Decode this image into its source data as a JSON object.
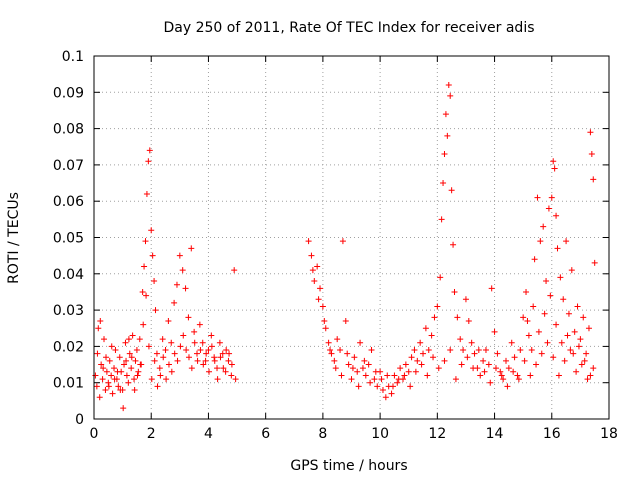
{
  "chart_data": {
    "type": "scatter",
    "title": "Day 250 of 2011, Rate Of TEC Index for receiver adis",
    "xlabel": "GPS time / hours",
    "ylabel": "ROTI / TECUs",
    "xlim": [
      0,
      18
    ],
    "ylim": [
      0,
      0.1
    ],
    "x_ticks": [
      "0",
      "2",
      "4",
      "6",
      "8",
      "10",
      "12",
      "14",
      "16",
      "18"
    ],
    "y_ticks": [
      "0",
      "0.01",
      "0.02",
      "0.03",
      "0.04",
      "0.05",
      "0.06",
      "0.07",
      "0.08",
      "0.09",
      "0.1"
    ],
    "grid": true,
    "marker": "+",
    "color": "#ff0000",
    "series": [
      {
        "points": [
          [
            0.05,
            0.012
          ],
          [
            0.1,
            0.009
          ],
          [
            0.15,
            0.025
          ],
          [
            0.2,
            0.006
          ],
          [
            0.25,
            0.015
          ],
          [
            0.3,
            0.011
          ],
          [
            0.35,
            0.022
          ],
          [
            0.4,
            0.008
          ],
          [
            0.45,
            0.013
          ],
          [
            0.5,
            0.01
          ],
          [
            0.55,
            0.016
          ],
          [
            0.6,
            0.012
          ],
          [
            0.65,
            0.007
          ],
          [
            0.7,
            0.014
          ],
          [
            0.75,
            0.019
          ],
          [
            0.8,
            0.011
          ],
          [
            0.85,
            0.009
          ],
          [
            0.9,
            0.017
          ],
          [
            0.95,
            0.013
          ],
          [
            1.0,
            0.008
          ],
          [
            1.05,
            0.015
          ],
          [
            1.1,
            0.021
          ],
          [
            1.15,
            0.012
          ],
          [
            1.2,
            0.01
          ],
          [
            1.25,
            0.018
          ],
          [
            1.3,
            0.014
          ],
          [
            1.35,
            0.023
          ],
          [
            1.4,
            0.011
          ],
          [
            1.45,
            0.016
          ],
          [
            1.5,
            0.019
          ],
          [
            1.55,
            0.013
          ],
          [
            1.6,
            0.022
          ],
          [
            1.65,
            0.015
          ],
          [
            1.7,
            0.035
          ],
          [
            1.75,
            0.042
          ],
          [
            1.8,
            0.049
          ],
          [
            1.85,
            0.062
          ],
          [
            1.9,
            0.071
          ],
          [
            1.95,
            0.074
          ],
          [
            2.0,
            0.052
          ],
          [
            2.05,
            0.045
          ],
          [
            2.1,
            0.038
          ],
          [
            2.15,
            0.03
          ],
          [
            2.2,
            0.018
          ],
          [
            2.3,
            0.014
          ],
          [
            2.4,
            0.022
          ],
          [
            2.5,
            0.019
          ],
          [
            2.6,
            0.027
          ],
          [
            2.7,
            0.021
          ],
          [
            2.8,
            0.032
          ],
          [
            2.9,
            0.037
          ],
          [
            3.0,
            0.045
          ],
          [
            3.1,
            0.041
          ],
          [
            3.2,
            0.036
          ],
          [
            3.3,
            0.028
          ],
          [
            3.4,
            0.047
          ],
          [
            3.5,
            0.024
          ],
          [
            3.6,
            0.018
          ],
          [
            3.7,
            0.026
          ],
          [
            3.8,
            0.021
          ],
          [
            3.9,
            0.016
          ],
          [
            4.0,
            0.019
          ],
          [
            4.1,
            0.023
          ],
          [
            4.2,
            0.017
          ],
          [
            4.3,
            0.014
          ],
          [
            4.4,
            0.021
          ],
          [
            4.5,
            0.018
          ],
          [
            4.6,
            0.013
          ],
          [
            4.7,
            0.016
          ],
          [
            4.8,
            0.012
          ],
          [
            4.9,
            0.041
          ],
          [
            4.95,
            0.011
          ],
          [
            7.5,
            0.049
          ],
          [
            7.6,
            0.045
          ],
          [
            7.7,
            0.038
          ],
          [
            7.8,
            0.042
          ],
          [
            7.9,
            0.036
          ],
          [
            8.0,
            0.031
          ],
          [
            8.1,
            0.025
          ],
          [
            8.2,
            0.021
          ],
          [
            8.3,
            0.018
          ],
          [
            8.4,
            0.016
          ],
          [
            8.5,
            0.022
          ],
          [
            8.6,
            0.019
          ],
          [
            8.7,
            0.049
          ],
          [
            8.8,
            0.027
          ],
          [
            8.9,
            0.015
          ],
          [
            9.0,
            0.011
          ],
          [
            9.1,
            0.017
          ],
          [
            9.2,
            0.013
          ],
          [
            9.3,
            0.021
          ],
          [
            9.4,
            0.014
          ],
          [
            9.5,
            0.012
          ],
          [
            9.6,
            0.015
          ],
          [
            9.7,
            0.019
          ],
          [
            9.8,
            0.011
          ],
          [
            9.9,
            0.009
          ],
          [
            10.0,
            0.013
          ],
          [
            10.1,
            0.008
          ],
          [
            10.2,
            0.006
          ],
          [
            10.3,
            0.009
          ],
          [
            10.4,
            0.007
          ],
          [
            10.5,
            0.012
          ],
          [
            10.6,
            0.01
          ],
          [
            10.7,
            0.014
          ],
          [
            10.8,
            0.011
          ],
          [
            10.9,
            0.015
          ],
          [
            11.0,
            0.013
          ],
          [
            11.1,
            0.017
          ],
          [
            11.2,
            0.019
          ],
          [
            11.3,
            0.016
          ],
          [
            11.4,
            0.021
          ],
          [
            11.5,
            0.018
          ],
          [
            11.6,
            0.025
          ],
          [
            11.7,
            0.019
          ],
          [
            11.8,
            0.023
          ],
          [
            11.9,
            0.028
          ],
          [
            12.0,
            0.031
          ],
          [
            12.1,
            0.039
          ],
          [
            12.15,
            0.055
          ],
          [
            12.2,
            0.065
          ],
          [
            12.25,
            0.073
          ],
          [
            12.3,
            0.084
          ],
          [
            12.35,
            0.078
          ],
          [
            12.4,
            0.092
          ],
          [
            12.45,
            0.089
          ],
          [
            12.5,
            0.063
          ],
          [
            12.55,
            0.048
          ],
          [
            12.6,
            0.035
          ],
          [
            12.7,
            0.028
          ],
          [
            12.8,
            0.022
          ],
          [
            12.9,
            0.019
          ],
          [
            13.0,
            0.033
          ],
          [
            13.1,
            0.027
          ],
          [
            13.2,
            0.021
          ],
          [
            13.3,
            0.018
          ],
          [
            13.4,
            0.014
          ],
          [
            13.5,
            0.012
          ],
          [
            13.6,
            0.016
          ],
          [
            13.7,
            0.019
          ],
          [
            13.8,
            0.015
          ],
          [
            13.9,
            0.036
          ],
          [
            14.0,
            0.024
          ],
          [
            14.1,
            0.018
          ],
          [
            14.2,
            0.013
          ],
          [
            14.3,
            0.011
          ],
          [
            14.4,
            0.016
          ],
          [
            14.5,
            0.014
          ],
          [
            14.6,
            0.021
          ],
          [
            14.7,
            0.017
          ],
          [
            14.8,
            0.012
          ],
          [
            14.9,
            0.019
          ],
          [
            15.0,
            0.028
          ],
          [
            15.1,
            0.035
          ],
          [
            15.2,
            0.023
          ],
          [
            15.3,
            0.019
          ],
          [
            15.4,
            0.044
          ],
          [
            15.5,
            0.061
          ],
          [
            15.6,
            0.049
          ],
          [
            15.7,
            0.053
          ],
          [
            15.8,
            0.038
          ],
          [
            15.9,
            0.058
          ],
          [
            16.0,
            0.061
          ],
          [
            16.05,
            0.071
          ],
          [
            16.1,
            0.069
          ],
          [
            16.15,
            0.056
          ],
          [
            16.2,
            0.047
          ],
          [
            16.3,
            0.039
          ],
          [
            16.4,
            0.033
          ],
          [
            16.5,
            0.049
          ],
          [
            16.6,
            0.029
          ],
          [
            16.7,
            0.041
          ],
          [
            16.8,
            0.024
          ],
          [
            16.9,
            0.031
          ],
          [
            17.0,
            0.022
          ],
          [
            17.1,
            0.028
          ],
          [
            17.2,
            0.018
          ],
          [
            17.3,
            0.025
          ],
          [
            17.35,
            0.079
          ],
          [
            17.4,
            0.073
          ],
          [
            17.45,
            0.066
          ],
          [
            17.5,
            0.043
          ],
          [
            0.12,
            0.018
          ],
          [
            0.22,
            0.027
          ],
          [
            0.32,
            0.014
          ],
          [
            0.42,
            0.017
          ],
          [
            0.52,
            0.009
          ],
          [
            0.62,
            0.02
          ],
          [
            0.72,
            0.011
          ],
          [
            0.82,
            0.013
          ],
          [
            0.92,
            0.008
          ],
          [
            1.02,
            0.003
          ],
          [
            1.12,
            0.016
          ],
          [
            1.22,
            0.022
          ],
          [
            1.32,
            0.017
          ],
          [
            1.42,
            0.008
          ],
          [
            1.52,
            0.012
          ],
          [
            1.62,
            0.015
          ],
          [
            1.72,
            0.026
          ],
          [
            1.82,
            0.034
          ],
          [
            1.92,
            0.02
          ],
          [
            2.02,
            0.011
          ],
          [
            2.12,
            0.016
          ],
          [
            2.22,
            0.009
          ],
          [
            2.32,
            0.012
          ],
          [
            2.42,
            0.017
          ],
          [
            2.52,
            0.011
          ],
          [
            2.62,
            0.015
          ],
          [
            2.72,
            0.013
          ],
          [
            2.82,
            0.018
          ],
          [
            2.92,
            0.016
          ],
          [
            3.02,
            0.02
          ],
          [
            3.12,
            0.023
          ],
          [
            3.22,
            0.019
          ],
          [
            3.32,
            0.017
          ],
          [
            3.42,
            0.014
          ],
          [
            3.52,
            0.021
          ],
          [
            3.62,
            0.016
          ],
          [
            3.72,
            0.019
          ],
          [
            3.82,
            0.015
          ],
          [
            3.92,
            0.018
          ],
          [
            4.02,
            0.013
          ],
          [
            4.12,
            0.02
          ],
          [
            4.22,
            0.016
          ],
          [
            4.32,
            0.011
          ],
          [
            4.42,
            0.017
          ],
          [
            4.52,
            0.014
          ],
          [
            4.62,
            0.019
          ],
          [
            4.72,
            0.018
          ],
          [
            4.82,
            0.015
          ],
          [
            7.65,
            0.041
          ],
          [
            7.85,
            0.033
          ],
          [
            8.05,
            0.027
          ],
          [
            8.25,
            0.019
          ],
          [
            8.45,
            0.014
          ],
          [
            8.65,
            0.012
          ],
          [
            8.85,
            0.018
          ],
          [
            9.05,
            0.014
          ],
          [
            9.25,
            0.009
          ],
          [
            9.45,
            0.016
          ],
          [
            9.65,
            0.01
          ],
          [
            9.85,
            0.013
          ],
          [
            10.05,
            0.011
          ],
          [
            10.25,
            0.012
          ],
          [
            10.45,
            0.009
          ],
          [
            10.65,
            0.011
          ],
          [
            10.85,
            0.012
          ],
          [
            11.05,
            0.009
          ],
          [
            11.25,
            0.013
          ],
          [
            11.45,
            0.015
          ],
          [
            11.65,
            0.012
          ],
          [
            11.85,
            0.017
          ],
          [
            12.05,
            0.014
          ],
          [
            12.25,
            0.016
          ],
          [
            12.45,
            0.019
          ],
          [
            12.65,
            0.011
          ],
          [
            12.85,
            0.015
          ],
          [
            13.05,
            0.017
          ],
          [
            13.25,
            0.014
          ],
          [
            13.45,
            0.019
          ],
          [
            13.65,
            0.013
          ],
          [
            13.85,
            0.01
          ],
          [
            14.05,
            0.014
          ],
          [
            14.25,
            0.012
          ],
          [
            14.45,
            0.009
          ],
          [
            14.65,
            0.013
          ],
          [
            14.85,
            0.011
          ],
          [
            15.05,
            0.016
          ],
          [
            15.25,
            0.012
          ],
          [
            15.45,
            0.015
          ],
          [
            15.65,
            0.018
          ],
          [
            15.85,
            0.021
          ],
          [
            16.05,
            0.017
          ],
          [
            16.25,
            0.012
          ],
          [
            16.45,
            0.016
          ],
          [
            16.65,
            0.019
          ],
          [
            16.85,
            0.013
          ],
          [
            17.05,
            0.015
          ],
          [
            17.25,
            0.011
          ],
          [
            17.45,
            0.014
          ],
          [
            15.15,
            0.027
          ],
          [
            15.35,
            0.031
          ],
          [
            15.55,
            0.024
          ],
          [
            15.75,
            0.029
          ],
          [
            15.95,
            0.034
          ],
          [
            16.15,
            0.026
          ],
          [
            16.35,
            0.021
          ],
          [
            16.55,
            0.023
          ],
          [
            16.75,
            0.018
          ],
          [
            16.95,
            0.02
          ],
          [
            17.15,
            0.016
          ],
          [
            17.35,
            0.012
          ]
        ]
      }
    ]
  }
}
